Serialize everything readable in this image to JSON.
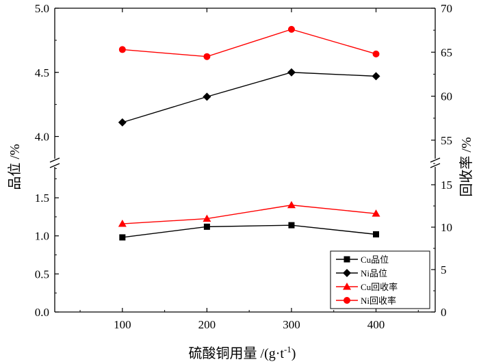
{
  "chart_data": {
    "type": "line",
    "x_label": "硫酸铜用量 /(g·t",
    "x_label_sup": "-1",
    "x_label_tail": ")",
    "y_left_label": "品位 /%",
    "y_right_label": "回收率 /%",
    "x": [
      100,
      200,
      300,
      400
    ],
    "x_ticks": [
      "100",
      "200",
      "300",
      "400"
    ],
    "x_range": [
      20,
      470
    ],
    "left_axis": {
      "lower": {
        "range": [
          0,
          1.95
        ],
        "ticks": [
          "0.0",
          "0.5",
          "1.0",
          "1.5"
        ]
      },
      "upper": {
        "range": [
          3.8,
          5.0
        ],
        "ticks": [
          "4.0",
          "4.5",
          "5.0"
        ]
      },
      "break": true
    },
    "right_axis": {
      "lower": {
        "range": [
          0,
          17.5
        ],
        "ticks": [
          "0",
          "5",
          "10",
          "15"
        ]
      },
      "upper": {
        "range": [
          52.5,
          70
        ],
        "ticks": [
          "55",
          "60",
          "65",
          "70"
        ]
      },
      "break": true
    },
    "series": [
      {
        "name": "Cu品位",
        "axis": "left",
        "color": "#000000",
        "marker": "square",
        "values": [
          0.98,
          1.12,
          1.14,
          1.02
        ]
      },
      {
        "name": "Ni品位",
        "axis": "left",
        "color": "#000000",
        "marker": "diamond",
        "values": [
          4.11,
          4.31,
          4.5,
          4.47
        ]
      },
      {
        "name": "Cu回收率",
        "axis": "right",
        "color": "#ff0000",
        "marker": "triangle",
        "values": [
          10.4,
          11.0,
          12.6,
          11.6
        ]
      },
      {
        "name": "Ni回收率",
        "axis": "right",
        "color": "#ff0000",
        "marker": "circle",
        "values": [
          65.3,
          64.5,
          67.6,
          64.8
        ]
      }
    ],
    "legend_position": "bottom-right",
    "grid": false
  }
}
